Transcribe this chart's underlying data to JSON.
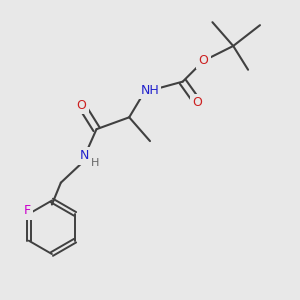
{
  "background_color": "#e8e8e8",
  "bond_color": "#404040",
  "atom_colors": {
    "N": "#2020cc",
    "O": "#cc2020",
    "F": "#cc00cc",
    "H": "#666666",
    "C": "#404040"
  },
  "title": "",
  "figsize": [
    3.0,
    3.0
  ],
  "dpi": 100
}
